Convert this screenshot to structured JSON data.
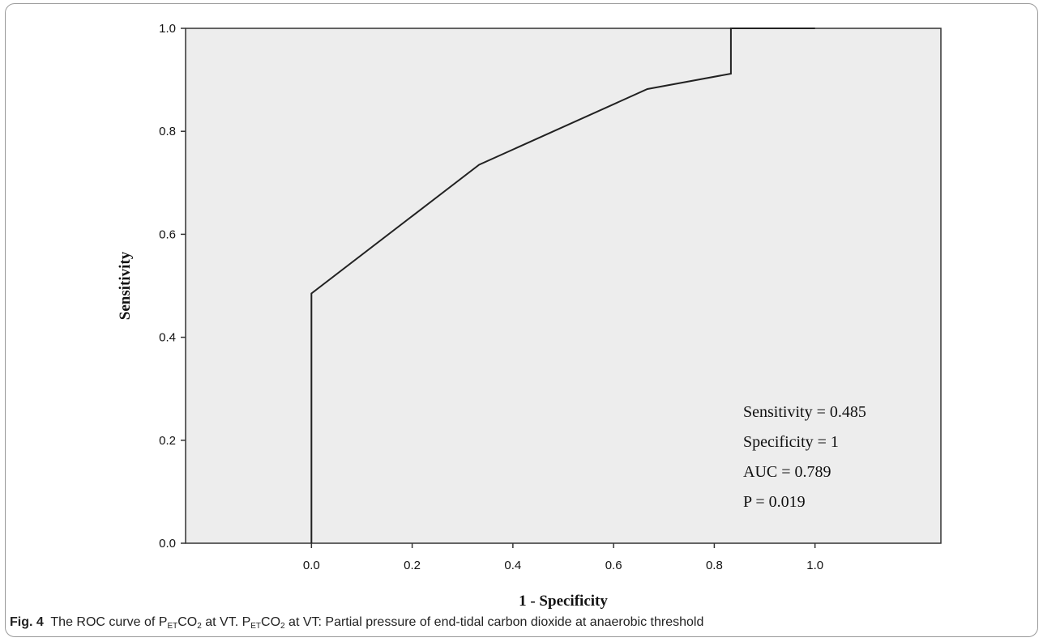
{
  "figure": {
    "caption_label": "Fig. 4",
    "caption_parts": [
      {
        "text": "The ROC curve of P"
      },
      {
        "text": "ET",
        "sub": true
      },
      {
        "text": "CO"
      },
      {
        "text": "2",
        "sub": true
      },
      {
        "text": " at VT. P"
      },
      {
        "text": "ET",
        "sub": true
      },
      {
        "text": "CO"
      },
      {
        "text": "2",
        "sub": true
      },
      {
        "text": " at VT: Partial pressure of end-tidal carbon dioxide at anaerobic threshold"
      }
    ]
  },
  "chart_data": {
    "type": "line",
    "xlabel": "1 - Specificity",
    "ylabel": "Sensitivity",
    "xlim": [
      -0.25,
      1.25
    ],
    "ylim": [
      0,
      1
    ],
    "xticks": [
      "0.0",
      "0.2",
      "0.4",
      "0.6",
      "0.8",
      "1.0"
    ],
    "xtick_values": [
      0,
      0.2,
      0.4,
      0.6,
      0.8,
      1.0
    ],
    "yticks": [
      "0.0",
      "0.2",
      "0.4",
      "0.6",
      "0.8",
      "1.0"
    ],
    "ytick_values": [
      0,
      0.2,
      0.4,
      0.6,
      0.8,
      1.0
    ],
    "grid": false,
    "background": "#ededed",
    "line_color": "#222222",
    "series": [
      {
        "x": [
          0,
          0,
          0.333,
          0.667,
          0.833,
          0.833,
          1.0
        ],
        "y": [
          0,
          0.485,
          0.735,
          0.882,
          0.912,
          1.0,
          1.0
        ]
      }
    ],
    "annotations": [
      "Sensitivity = 0.485",
      "Specificity = 1",
      "AUC = 0.789",
      "P = 0.019"
    ]
  }
}
